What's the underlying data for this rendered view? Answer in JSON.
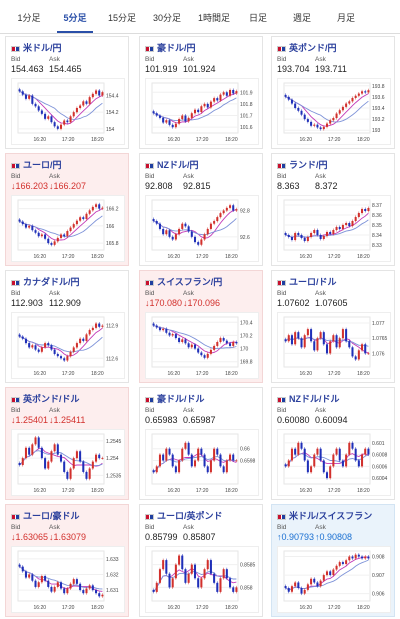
{
  "tabs": [
    {
      "label": "1分足",
      "active": false
    },
    {
      "label": "5分足",
      "active": true
    },
    {
      "label": "15分足",
      "active": false
    },
    {
      "label": "30分足",
      "active": false
    },
    {
      "label": "1時間足",
      "active": false
    },
    {
      "label": "日足",
      "active": false
    },
    {
      "label": "週足",
      "active": false
    },
    {
      "label": "月足",
      "active": false
    }
  ],
  "colors": {
    "up": "#d2302c",
    "down": "#1f2fb8",
    "ma1": "#c33ab8",
    "ma2": "#7d92d8",
    "accent": "#2a4fa8"
  },
  "pairs": [
    {
      "name": "米ドル/円",
      "flag": "us-jp-flag-icon",
      "bid_label": "Bid",
      "ask_label": "Ask",
      "bid": "154.463",
      "ask": "154.465",
      "trend": "none",
      "chart_data": {
        "type": "candlestick",
        "x_ticks": [
          "16:20",
          "17:20",
          "18:20"
        ],
        "y_ticks": [
          "154.4",
          "154.2",
          "154"
        ],
        "ylim": [
          153.95,
          154.55
        ],
        "close": [
          154.45,
          154.41,
          154.36,
          154.4,
          154.3,
          154.27,
          154.22,
          154.18,
          154.12,
          154.15,
          154.08,
          154.03,
          154.0,
          154.05,
          154.1,
          154.08,
          154.15,
          154.2,
          154.25,
          154.28,
          154.33,
          154.3,
          154.38,
          154.42,
          154.46,
          154.4,
          154.44
        ]
      }
    },
    {
      "name": "豪ドル/円",
      "flag": "au-jp-flag-icon",
      "bid_label": "Bid",
      "ask_label": "Ask",
      "bid": "101.919",
      "ask": "101.924",
      "trend": "none",
      "chart_data": {
        "type": "candlestick",
        "x_ticks": [
          "16:20",
          "17:20",
          "18:20"
        ],
        "y_ticks": [
          "101.9",
          "101.8",
          "101.7",
          "101.6"
        ],
        "ylim": [
          101.55,
          101.98
        ],
        "close": [
          101.72,
          101.7,
          101.68,
          101.64,
          101.66,
          101.62,
          101.6,
          101.63,
          101.67,
          101.7,
          101.65,
          101.68,
          101.72,
          101.75,
          101.73,
          101.78,
          101.8,
          101.77,
          101.82,
          101.85,
          101.83,
          101.88,
          101.9,
          101.87,
          101.92,
          101.89,
          101.91
        ]
      }
    },
    {
      "name": "英ポンド/円",
      "flag": "gb-jp-flag-icon",
      "bid_label": "Bid",
      "ask_label": "Ask",
      "bid": "193.704",
      "ask": "193.711",
      "trend": "none",
      "chart_data": {
        "type": "candlestick",
        "x_ticks": [
          "16:20",
          "17:20",
          "18:20"
        ],
        "y_ticks": [
          "193.8",
          "193.6",
          "193.4",
          "193.2",
          "193"
        ],
        "ylim": [
          192.95,
          193.85
        ],
        "close": [
          193.6,
          193.55,
          193.48,
          193.4,
          193.35,
          193.28,
          193.2,
          193.15,
          193.08,
          193.1,
          193.05,
          193.02,
          193.06,
          193.12,
          193.18,
          193.22,
          193.3,
          193.36,
          193.42,
          193.48,
          193.52,
          193.58,
          193.62,
          193.66,
          193.7,
          193.68,
          193.72
        ]
      }
    },
    {
      "name": "ユーロ/円",
      "flag": "eu-jp-flag-icon",
      "bid_label": "Bid",
      "ask_label": "Ask",
      "bid": "↓166.203",
      "ask": "↓166.207",
      "trend": "down",
      "chart_data": {
        "type": "candlestick",
        "x_ticks": [
          "16:20",
          "17:20",
          "18:20"
        ],
        "y_ticks": [
          "166.2",
          "166",
          "165.8"
        ],
        "ylim": [
          165.72,
          166.3
        ],
        "close": [
          166.05,
          166.02,
          165.98,
          166.0,
          165.95,
          165.92,
          165.88,
          165.9,
          165.85,
          165.8,
          165.78,
          165.82,
          165.86,
          165.9,
          165.88,
          165.94,
          165.98,
          166.02,
          166.06,
          166.1,
          166.08,
          166.14,
          166.18,
          166.22,
          166.25,
          166.2,
          166.21
        ]
      }
    },
    {
      "name": "NZドル/円",
      "flag": "nz-jp-flag-icon",
      "bid_label": "Bid",
      "ask_label": "Ask",
      "bid": "92.808",
      "ask": "92.815",
      "trend": "none",
      "chart_data": {
        "type": "candlestick",
        "x_ticks": [
          "16:20",
          "17:20",
          "18:20"
        ],
        "y_ticks": [
          "92.8",
          "92.6"
        ],
        "ylim": [
          92.5,
          92.88
        ],
        "close": [
          92.72,
          92.7,
          92.66,
          92.62,
          92.65,
          92.6,
          92.58,
          92.62,
          92.66,
          92.7,
          92.68,
          92.64,
          92.6,
          92.56,
          92.54,
          92.58,
          92.62,
          92.66,
          92.7,
          92.72,
          92.75,
          92.78,
          92.8,
          92.82,
          92.84,
          92.8,
          92.81
        ]
      }
    },
    {
      "name": "ランド/円",
      "flag": "za-jp-flag-icon",
      "bid_label": "Bid",
      "ask_label": "Ask",
      "bid": "8.363",
      "ask": "8.372",
      "trend": "none",
      "chart_data": {
        "type": "candlestick",
        "x_ticks": [
          "16:20",
          "17:20",
          "18:20"
        ],
        "y_ticks": [
          "8.37",
          "8.36",
          "8.35",
          "8.34",
          "8.33"
        ],
        "ylim": [
          8.325,
          8.375
        ],
        "close": [
          8.34,
          8.338,
          8.335,
          8.342,
          8.34,
          8.337,
          8.334,
          8.338,
          8.342,
          8.345,
          8.34,
          8.336,
          8.339,
          8.343,
          8.341,
          8.345,
          8.348,
          8.346,
          8.35,
          8.352,
          8.349,
          8.354,
          8.358,
          8.362,
          8.366,
          8.364,
          8.367
        ]
      }
    },
    {
      "name": "カナダドル/円",
      "flag": "ca-jp-flag-icon",
      "bid_label": "Bid",
      "ask_label": "Ask",
      "bid": "112.903",
      "ask": "112.909",
      "trend": "none",
      "chart_data": {
        "type": "candlestick",
        "x_ticks": [
          "16:20",
          "17:20",
          "18:20"
        ],
        "y_ticks": [
          "112.9",
          "112.6"
        ],
        "ylim": [
          112.52,
          112.98
        ],
        "close": [
          112.8,
          112.78,
          112.74,
          112.7,
          112.72,
          112.68,
          112.66,
          112.7,
          112.74,
          112.72,
          112.68,
          112.64,
          112.62,
          112.6,
          112.58,
          112.62,
          112.66,
          112.7,
          112.74,
          112.78,
          112.76,
          112.82,
          112.86,
          112.88,
          112.92,
          112.89,
          112.9
        ]
      }
    },
    {
      "name": "スイスフラン/円",
      "flag": "ch-jp-flag-icon",
      "bid_label": "Bid",
      "ask_label": "Ask",
      "bid": "↓170.080",
      "ask": "↓170.096",
      "trend": "down",
      "chart_data": {
        "type": "candlestick",
        "x_ticks": [
          "16:20",
          "17:20",
          "18:20"
        ],
        "y_ticks": [
          "170.4",
          "170.2",
          "170",
          "169.8"
        ],
        "ylim": [
          169.72,
          170.48
        ],
        "close": [
          170.35,
          170.32,
          170.28,
          170.3,
          170.24,
          170.2,
          170.22,
          170.16,
          170.1,
          170.14,
          170.08,
          170.02,
          170.06,
          170.0,
          169.94,
          169.9,
          169.86,
          169.92,
          169.98,
          170.04,
          170.1,
          170.16,
          170.12,
          170.08,
          170.04,
          170.1,
          170.08
        ]
      }
    },
    {
      "name": "ユーロ/ドル",
      "flag": "eu-us-flag-icon",
      "bid_label": "Bid",
      "ask_label": "Ask",
      "bid": "1.07602",
      "ask": "1.07605",
      "trend": "none",
      "chart_data": {
        "type": "candlestick",
        "x_ticks": [
          "16:20",
          "17:20",
          "18:20"
        ],
        "y_ticks": [
          "1.077",
          "1.0765",
          "1.076"
        ],
        "ylim": [
          1.07555,
          1.0772
        ],
        "close": [
          1.0764,
          1.0766,
          1.0763,
          1.0767,
          1.0765,
          1.0762,
          1.0766,
          1.0768,
          1.0764,
          1.0761,
          1.0765,
          1.0767,
          1.0763,
          1.076,
          1.0764,
          1.0766,
          1.0762,
          1.0765,
          1.0768,
          1.0764,
          1.0762,
          1.0759,
          1.0758,
          1.0761,
          1.0763,
          1.076,
          1.076
        ]
      }
    },
    {
      "name": "英ポンド/ドル",
      "flag": "gb-us-flag-icon",
      "bid_label": "Bid",
      "ask_label": "Ask",
      "bid": "↓1.25401",
      "ask": "↓1.25411",
      "trend": "down",
      "chart_data": {
        "type": "candlestick",
        "x_ticks": [
          "16:20",
          "17:20",
          "18:20"
        ],
        "y_ticks": [
          "1.2545",
          "1.254",
          "1.2535"
        ],
        "ylim": [
          1.25325,
          1.2547
        ],
        "close": [
          1.2538,
          1.254,
          1.2543,
          1.2541,
          1.2544,
          1.2546,
          1.2543,
          1.254,
          1.2537,
          1.2539,
          1.2542,
          1.2544,
          1.2541,
          1.2539,
          1.2536,
          1.2534,
          1.2537,
          1.254,
          1.2542,
          1.2539,
          1.2536,
          1.2534,
          1.2537,
          1.2539,
          1.2541,
          1.254,
          1.254
        ]
      }
    },
    {
      "name": "豪ドル/ドル",
      "flag": "au-us-flag-icon",
      "bid_label": "Bid",
      "ask_label": "Ask",
      "bid": "0.65983",
      "ask": "0.65987",
      "trend": "none",
      "chart_data": {
        "type": "candlestick",
        "x_ticks": [
          "16:20",
          "17:20",
          "18:20"
        ],
        "y_ticks": [
          "0.66",
          "0.6598"
        ],
        "ylim": [
          0.6594,
          0.66025
        ],
        "close": [
          0.6596,
          0.6597,
          0.6599,
          0.6598,
          0.66,
          0.6599,
          0.6597,
          0.6596,
          0.6598,
          0.66,
          0.6601,
          0.6599,
          0.6597,
          0.6598,
          0.66,
          0.6599,
          0.6597,
          0.6596,
          0.6598,
          0.66,
          0.6599,
          0.6597,
          0.6596,
          0.6598,
          0.6599,
          0.6598,
          0.6598
        ]
      }
    },
    {
      "name": "NZドル/ドル",
      "flag": "nz-us-flag-icon",
      "bid_label": "Bid",
      "ask_label": "Ask",
      "bid": "0.60080",
      "ask": "0.60094",
      "trend": "none",
      "chart_data": {
        "type": "candlestick",
        "x_ticks": [
          "16:20",
          "17:20",
          "18:20"
        ],
        "y_ticks": [
          "0.601",
          "0.6008",
          "0.6006",
          "0.6004"
        ],
        "ylim": [
          0.6003,
          0.60115
        ],
        "close": [
          0.6006,
          0.6007,
          0.6009,
          0.6008,
          0.601,
          0.6009,
          0.6007,
          0.6005,
          0.6006,
          0.6008,
          0.6009,
          0.6007,
          0.6005,
          0.6004,
          0.6006,
          0.6008,
          0.6009,
          0.6007,
          0.6006,
          0.6008,
          0.601,
          0.6009,
          0.6007,
          0.6006,
          0.6008,
          0.6009,
          0.6008
        ]
      }
    },
    {
      "name": "ユーロ/豪ドル",
      "flag": "eu-au-flag-icon",
      "bid_label": "Bid",
      "ask_label": "Ask",
      "bid": "↓1.63065",
      "ask": "↓1.63079",
      "trend": "down",
      "chart_data": {
        "type": "candlestick",
        "x_ticks": [
          "16:20",
          "17:20",
          "18:20"
        ],
        "y_ticks": [
          "1.633",
          "1.632",
          "1.631"
        ],
        "ylim": [
          1.6303,
          1.6335
        ],
        "close": [
          1.6325,
          1.6322,
          1.6318,
          1.632,
          1.6316,
          1.6312,
          1.6315,
          1.6319,
          1.6316,
          1.6312,
          1.6309,
          1.6312,
          1.6315,
          1.6311,
          1.6308,
          1.6311,
          1.6314,
          1.6317,
          1.6314,
          1.631,
          1.6308,
          1.6311,
          1.6313,
          1.631,
          1.6308,
          1.6306,
          1.6307
        ]
      }
    },
    {
      "name": "ユーロ/英ポンド",
      "flag": "eu-gb-flag-icon",
      "bid_label": "Bid",
      "ask_label": "Ask",
      "bid": "0.85799",
      "ask": "0.85807",
      "trend": "none",
      "chart_data": {
        "type": "candlestick",
        "x_ticks": [
          "16:20",
          "17:20",
          "18:20"
        ],
        "y_ticks": [
          "0.8585",
          "0.858"
        ],
        "ylim": [
          0.8577,
          0.8588
        ],
        "close": [
          0.8579,
          0.8581,
          0.8584,
          0.8586,
          0.8583,
          0.858,
          0.8582,
          0.8585,
          0.8587,
          0.8584,
          0.8581,
          0.8583,
          0.8585,
          0.8582,
          0.858,
          0.8582,
          0.8584,
          0.8586,
          0.8583,
          0.8581,
          0.8579,
          0.8582,
          0.8584,
          0.8582,
          0.858,
          0.8579,
          0.858
        ]
      }
    },
    {
      "name": "米ドル/スイスフラン",
      "flag": "us-ch-flag-icon",
      "bid_label": "Bid",
      "ask_label": "Ask",
      "bid": "↑0.90793",
      "ask": "↑0.90808",
      "trend": "up",
      "chart_data": {
        "type": "candlestick",
        "x_ticks": [
          "16:20",
          "17:20",
          "18:20"
        ],
        "y_ticks": [
          "0.908",
          "0.907",
          "0.906"
        ],
        "ylim": [
          0.9056,
          0.9083
        ],
        "close": [
          0.9063,
          0.9061,
          0.9064,
          0.9066,
          0.9063,
          0.906,
          0.9062,
          0.9065,
          0.9068,
          0.9066,
          0.9064,
          0.9067,
          0.907,
          0.9072,
          0.907,
          0.9073,
          0.9075,
          0.9077,
          0.9076,
          0.9078,
          0.908,
          0.9079,
          0.9081,
          0.908,
          0.9079,
          0.908,
          0.9079
        ]
      }
    }
  ]
}
